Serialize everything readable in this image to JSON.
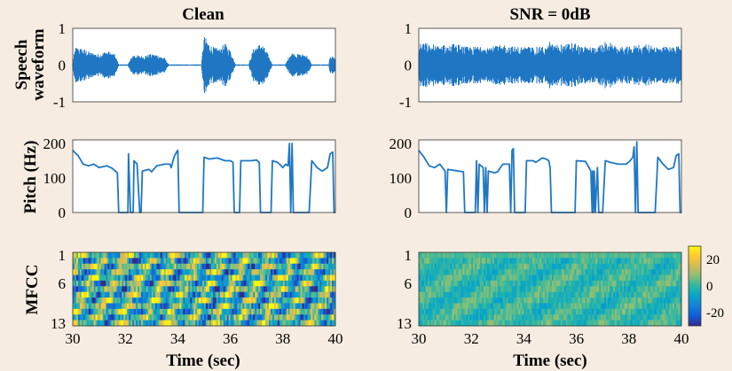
{
  "chart_data": {
    "type": "line",
    "panel_titles": [
      "Clean",
      "SNR = 0dB"
    ],
    "row_labels": {
      "waveform": [
        "Speech",
        "waveform"
      ],
      "pitch": "Pitch (Hz)",
      "mfcc": "MFCC"
    },
    "xlabel": "Time (sec)",
    "xlim": [
      30,
      40
    ],
    "xticks": [
      "30",
      "32",
      "34",
      "36",
      "38",
      "40"
    ],
    "waveform": {
      "ylim": [
        -1,
        1
      ],
      "yticks": [
        "1",
        "0",
        "-1"
      ],
      "color": "#1f77c4",
      "clean_envelope": [
        {
          "x": 30.0,
          "amp": 0.05
        },
        {
          "x": 30.1,
          "amp": 0.5
        },
        {
          "x": 30.4,
          "amp": 0.45
        },
        {
          "x": 30.7,
          "amp": 0.35
        },
        {
          "x": 31.0,
          "amp": 0.3
        },
        {
          "x": 31.3,
          "amp": 0.4
        },
        {
          "x": 31.6,
          "amp": 0.3
        },
        {
          "x": 31.75,
          "amp": 0.02
        },
        {
          "x": 32.1,
          "amp": 0.02
        },
        {
          "x": 32.3,
          "amp": 0.3
        },
        {
          "x": 32.6,
          "amp": 0.25
        },
        {
          "x": 32.9,
          "amp": 0.3
        },
        {
          "x": 33.2,
          "amp": 0.3
        },
        {
          "x": 33.5,
          "amp": 0.2
        },
        {
          "x": 33.65,
          "amp": 0.02
        },
        {
          "x": 34.9,
          "amp": 0.02
        },
        {
          "x": 35.0,
          "amp": 0.8
        },
        {
          "x": 35.3,
          "amp": 0.5
        },
        {
          "x": 35.6,
          "amp": 0.45
        },
        {
          "x": 35.8,
          "amp": 0.6
        },
        {
          "x": 36.0,
          "amp": 0.4
        },
        {
          "x": 36.2,
          "amp": 0.02
        },
        {
          "x": 36.7,
          "amp": 0.02
        },
        {
          "x": 36.9,
          "amp": 0.5
        },
        {
          "x": 37.2,
          "amp": 0.6
        },
        {
          "x": 37.4,
          "amp": 0.35
        },
        {
          "x": 37.6,
          "amp": 0.02
        },
        {
          "x": 38.1,
          "amp": 0.02
        },
        {
          "x": 38.3,
          "amp": 0.35
        },
        {
          "x": 38.6,
          "amp": 0.3
        },
        {
          "x": 38.9,
          "amp": 0.3
        },
        {
          "x": 39.1,
          "amp": 0.02
        },
        {
          "x": 39.75,
          "amp": 0.02
        },
        {
          "x": 39.8,
          "amp": 0.25
        },
        {
          "x": 40.0,
          "amp": 0.2
        }
      ],
      "noisy_amp": 0.5
    },
    "pitch": {
      "ylim": [
        0,
        200
      ],
      "yticks": [
        "200",
        "100",
        "0"
      ],
      "color": "#1f77c4",
      "clean": [
        [
          30.0,
          180
        ],
        [
          30.2,
          165
        ],
        [
          30.4,
          140
        ],
        [
          30.6,
          135
        ],
        [
          30.8,
          140
        ],
        [
          31.0,
          130
        ],
        [
          31.3,
          135
        ],
        [
          31.5,
          128
        ],
        [
          31.7,
          115
        ],
        [
          31.75,
          0
        ],
        [
          32.1,
          0
        ],
        [
          32.12,
          170
        ],
        [
          32.2,
          0
        ],
        [
          32.3,
          0
        ],
        [
          32.33,
          150
        ],
        [
          32.45,
          140
        ],
        [
          32.55,
          0
        ],
        [
          32.6,
          0
        ],
        [
          32.65,
          120
        ],
        [
          32.9,
          125
        ],
        [
          33.0,
          118
        ],
        [
          33.2,
          135
        ],
        [
          33.5,
          140
        ],
        [
          33.7,
          140
        ],
        [
          33.75,
          130
        ],
        [
          33.85,
          160
        ],
        [
          33.95,
          175
        ],
        [
          34.0,
          180
        ],
        [
          34.05,
          0
        ],
        [
          34.95,
          0
        ],
        [
          35.0,
          160
        ],
        [
          35.2,
          155
        ],
        [
          35.5,
          158
        ],
        [
          35.8,
          150
        ],
        [
          36.0,
          150
        ],
        [
          36.1,
          145
        ],
        [
          36.15,
          0
        ],
        [
          36.35,
          0
        ],
        [
          36.4,
          150
        ],
        [
          36.8,
          150
        ],
        [
          37.0,
          152
        ],
        [
          37.1,
          145
        ],
        [
          37.15,
          0
        ],
        [
          37.55,
          0
        ],
        [
          37.6,
          150
        ],
        [
          37.8,
          145
        ],
        [
          38.0,
          130
        ],
        [
          38.1,
          140
        ],
        [
          38.2,
          135
        ],
        [
          38.25,
          200
        ],
        [
          38.3,
          0
        ],
        [
          38.35,
          200
        ],
        [
          38.4,
          0
        ],
        [
          39.0,
          0
        ],
        [
          39.1,
          150
        ],
        [
          39.3,
          130
        ],
        [
          39.5,
          120
        ],
        [
          39.7,
          130
        ],
        [
          39.8,
          170
        ],
        [
          39.9,
          175
        ],
        [
          39.95,
          0
        ],
        [
          40.0,
          0
        ]
      ],
      "noisy": [
        [
          30.0,
          180
        ],
        [
          30.2,
          160
        ],
        [
          30.4,
          135
        ],
        [
          30.6,
          130
        ],
        [
          30.8,
          140
        ],
        [
          31.0,
          120
        ],
        [
          31.05,
          0
        ],
        [
          31.1,
          125
        ],
        [
          31.5,
          120
        ],
        [
          31.7,
          118
        ],
        [
          31.75,
          0
        ],
        [
          32.15,
          0
        ],
        [
          32.2,
          150
        ],
        [
          32.25,
          0
        ],
        [
          32.3,
          140
        ],
        [
          32.45,
          130
        ],
        [
          32.5,
          0
        ],
        [
          32.55,
          130
        ],
        [
          32.6,
          0
        ],
        [
          32.65,
          120
        ],
        [
          32.9,
          115
        ],
        [
          33.0,
          118
        ],
        [
          33.2,
          140
        ],
        [
          33.45,
          140
        ],
        [
          33.5,
          0
        ],
        [
          33.55,
          180
        ],
        [
          33.6,
          185
        ],
        [
          33.65,
          0
        ],
        [
          34.05,
          0
        ],
        [
          34.1,
          150
        ],
        [
          34.35,
          150
        ],
        [
          34.45,
          145
        ],
        [
          34.55,
          150
        ],
        [
          34.7,
          158
        ],
        [
          34.85,
          155
        ],
        [
          34.95,
          150
        ],
        [
          35.0,
          130
        ],
        [
          35.05,
          0
        ],
        [
          35.95,
          0
        ],
        [
          36.0,
          150
        ],
        [
          36.35,
          148
        ],
        [
          36.55,
          120
        ],
        [
          36.6,
          0
        ],
        [
          36.62,
          120
        ],
        [
          36.65,
          0
        ],
        [
          36.68,
          120
        ],
        [
          36.72,
          0
        ],
        [
          36.8,
          130
        ],
        [
          36.85,
          0
        ],
        [
          37.0,
          0
        ],
        [
          37.1,
          150
        ],
        [
          37.3,
          145
        ],
        [
          37.6,
          140
        ],
        [
          37.9,
          140
        ],
        [
          38.05,
          150
        ],
        [
          38.15,
          160
        ],
        [
          38.2,
          190
        ],
        [
          38.25,
          0
        ],
        [
          38.3,
          205
        ],
        [
          38.35,
          0
        ],
        [
          39.0,
          0
        ],
        [
          39.1,
          160
        ],
        [
          39.3,
          140
        ],
        [
          39.5,
          125
        ],
        [
          39.7,
          130
        ],
        [
          39.8,
          165
        ],
        [
          39.9,
          170
        ],
        [
          39.95,
          0
        ],
        [
          40.0,
          0
        ]
      ]
    },
    "mfcc": {
      "type": "heatmap",
      "yticks": [
        "1",
        "6",
        "13"
      ],
      "coefficients": 13,
      "colormap": "parula",
      "colorbar_ticks": [
        "20",
        "0",
        "-20"
      ],
      "colorbar_range": [
        -30,
        30
      ]
    }
  }
}
